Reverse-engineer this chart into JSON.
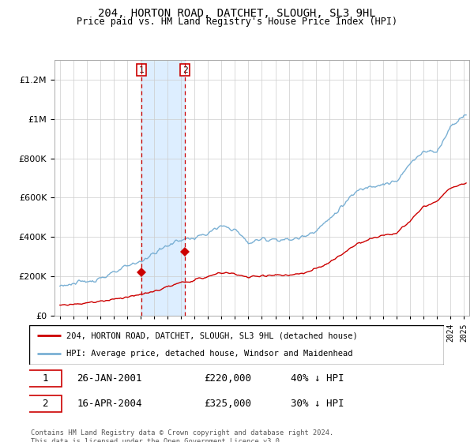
{
  "title": "204, HORTON ROAD, DATCHET, SLOUGH, SL3 9HL",
  "subtitle": "Price paid vs. HM Land Registry's House Price Index (HPI)",
  "sale1_date": "26-JAN-2001",
  "sale1_price": 220000,
  "sale1_label": "40% ↓ HPI",
  "sale2_date": "16-APR-2004",
  "sale2_price": 325000,
  "sale2_label": "30% ↓ HPI",
  "legend_red": "204, HORTON ROAD, DATCHET, SLOUGH, SL3 9HL (detached house)",
  "legend_blue": "HPI: Average price, detached house, Windsor and Maidenhead",
  "footer": "Contains HM Land Registry data © Crown copyright and database right 2024.\nThis data is licensed under the Open Government Licence v3.0.",
  "red_color": "#cc0000",
  "blue_color": "#7ab0d4",
  "shade_color": "#ddeeff",
  "sale1_x": 2001.07,
  "sale2_x": 2004.29,
  "ylim_max": 1300000,
  "xlim_min": 1994.6,
  "xlim_max": 2025.4
}
